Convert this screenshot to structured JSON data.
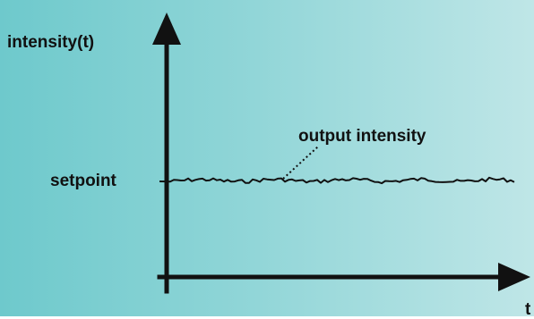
{
  "diagram": {
    "y_axis_label": "intensity(t)",
    "x_axis_label": "t",
    "setpoint_label": "setpoint",
    "annotation_label": "output intensity",
    "background_colors": [
      "#6ec9cc",
      "#8fd5d7",
      "#bfe6e7"
    ],
    "line_color": "#111111"
  }
}
